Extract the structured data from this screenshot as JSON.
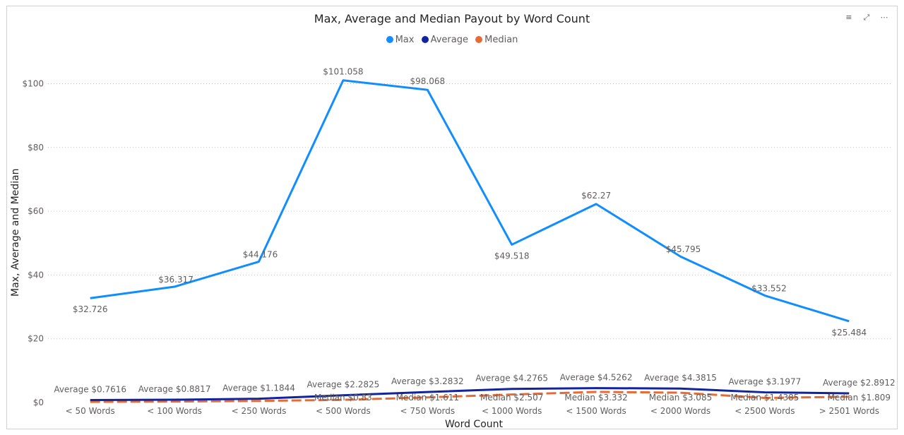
{
  "chart_data": {
    "type": "line",
    "title": "Max, Average and Median Payout by Word Count",
    "xlabel": "Word Count",
    "ylabel": "Max, Average and Median",
    "ylim": [
      0,
      110
    ],
    "y_ticks": [
      "$0",
      "$20",
      "$40",
      "$60",
      "$80",
      "$100"
    ],
    "y_tick_values": [
      0,
      20,
      40,
      60,
      80,
      100
    ],
    "grid": true,
    "legend_position": "top-center",
    "categories": [
      "< 50 Words",
      "< 100 Words",
      "< 250 Words",
      "< 500 Words",
      "< 750 Words",
      "< 1000 Words",
      "< 1500 Words",
      "< 2000 Words",
      "< 2500 Words",
      "> 2501 Words"
    ],
    "series": [
      {
        "name": "Max",
        "color": "#118DFF",
        "values": [
          32.726,
          36.317,
          44.176,
          101.058,
          98.068,
          49.518,
          62.27,
          45.795,
          33.552,
          25.484
        ],
        "labels": [
          "$32.726",
          "$36.317",
          "$44.176",
          "$101.058",
          "$98.068",
          "$49.518",
          "$62.27",
          "$45.795",
          "$33.552",
          "$25.484"
        ]
      },
      {
        "name": "Average",
        "color": "#12239E",
        "values": [
          0.7616,
          0.8817,
          1.1844,
          2.2825,
          3.2832,
          4.2765,
          4.5262,
          4.3815,
          3.1977,
          2.8912
        ],
        "labels": [
          "Average $0.7616",
          "Average $0.8817",
          "Average $1.1844",
          "Average $2.2825",
          "Average $3.2832",
          "Average $4.2765",
          "Average $4.5262",
          "Average $4.3815",
          "Average $3.1977",
          "Average $2.8912"
        ]
      },
      {
        "name": "Median",
        "color": "#E66C37",
        "values": [
          0.2,
          0.3,
          0.5,
          0.83,
          1.611,
          2.507,
          3.332,
          3.085,
          1.4385,
          1.809
        ],
        "labels": [
          "",
          "",
          "",
          "Median $0.83",
          "Median $1.611",
          "Median $2.507",
          "Median $3.332",
          "Median $3.085",
          "Median $1.4385",
          "Median $1.809"
        ]
      }
    ]
  },
  "visual_header": {
    "icons": [
      "filter-icon",
      "focus-mode-icon",
      "more-options-icon"
    ],
    "filter_glyph": "≡",
    "focus_glyph": "⤢",
    "more_glyph": "⋯"
  }
}
